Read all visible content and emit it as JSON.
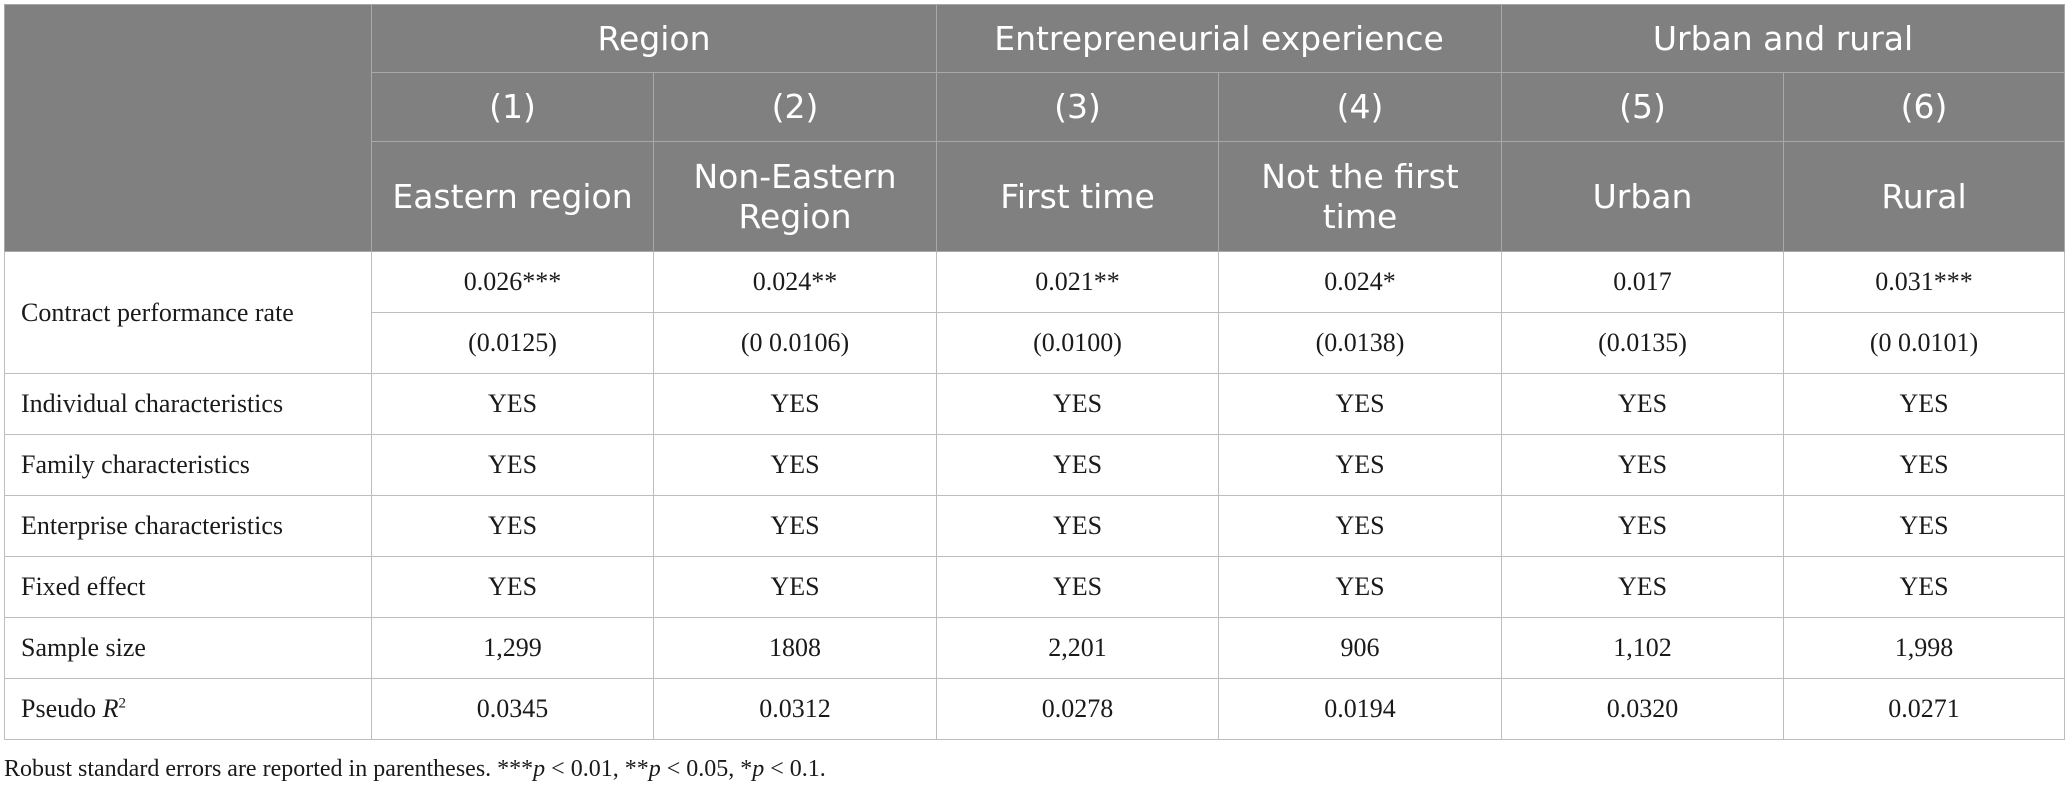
{
  "header": {
    "groups": [
      "Region",
      "Entrepreneurial experience",
      "Urban and rural"
    ],
    "numbers": [
      "(1)",
      "(2)",
      "(3)",
      "(4)",
      "(5)",
      "(6)"
    ],
    "subheaders": [
      "Eastern region",
      "Non-Eastern Region",
      "First time",
      "Not the first time",
      "Urban",
      "Rural"
    ]
  },
  "rows": {
    "contract": {
      "label": "Contract performance rate",
      "coef": [
        "0.026***",
        "0.024**",
        "0.021**",
        "0.024*",
        "0.017",
        "0.031***"
      ],
      "se": [
        "(0.0125)",
        "(0 0.0106)",
        "(0.0100)",
        "(0.0138)",
        "(0.0135)",
        "(0 0.0101)"
      ]
    },
    "individual": {
      "label": "Individual characteristics",
      "values": [
        "YES",
        "YES",
        "YES",
        "YES",
        "YES",
        "YES"
      ]
    },
    "family": {
      "label": "Family characteristics",
      "values": [
        "YES",
        "YES",
        "YES",
        "YES",
        "YES",
        "YES"
      ]
    },
    "enterprise": {
      "label": "Enterprise characteristics",
      "values": [
        "YES",
        "YES",
        "YES",
        "YES",
        "YES",
        "YES"
      ]
    },
    "fixed": {
      "label": "Fixed effect",
      "values": [
        "YES",
        "YES",
        "YES",
        "YES",
        "YES",
        "YES"
      ]
    },
    "sample": {
      "label": "Sample size",
      "values": [
        "1,299",
        "1808",
        "2,201",
        "906",
        "1,102",
        "1,998"
      ]
    },
    "pseudo": {
      "label_prefix": "Pseudo ",
      "label_var": "R",
      "label_sup": "2",
      "values": [
        "0.0345",
        "0.0312",
        "0.0278",
        "0.0194",
        "0.0320",
        "0.0271"
      ]
    }
  },
  "note": {
    "prefix": "Robust standard errors are reported in parentheses. ",
    "p1_stars": "***",
    "p1_cond": " < 0.01, ",
    "p2_stars": "**",
    "p2_cond": " < 0.05, ",
    "p3_stars": "*",
    "p3_cond": " < 0.1.",
    "p_var": "p"
  }
}
